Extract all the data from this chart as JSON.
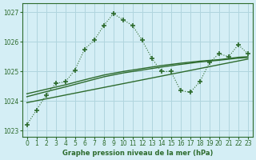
{
  "title": "Graphe pression niveau de la mer (hPa)",
  "background_color": "#d4eef5",
  "grid_color": "#b0d5de",
  "line_color": "#2d6b2d",
  "xlim": [
    -0.5,
    23.5
  ],
  "ylim": [
    1022.8,
    1027.3
  ],
  "yticks": [
    1023,
    1024,
    1025,
    1026,
    1027
  ],
  "xticks": [
    0,
    1,
    2,
    3,
    4,
    5,
    6,
    7,
    8,
    9,
    10,
    11,
    12,
    13,
    14,
    15,
    16,
    17,
    18,
    19,
    20,
    21,
    22,
    23
  ],
  "series_dotted": {
    "x": [
      0,
      1,
      2,
      3,
      4,
      5,
      6,
      7,
      8,
      9,
      10,
      11,
      12,
      13,
      14,
      15,
      16,
      17,
      18,
      19,
      20,
      21,
      22,
      23
    ],
    "y": [
      1023.2,
      1023.7,
      1024.2,
      1024.6,
      1024.65,
      1025.05,
      1025.75,
      1026.05,
      1026.55,
      1026.95,
      1026.75,
      1026.55,
      1026.05,
      1025.45,
      1025.0,
      1025.0,
      1024.35,
      1024.3,
      1024.65,
      1025.3,
      1025.6,
      1025.5,
      1025.9,
      1025.6
    ]
  },
  "series_smooth_a": {
    "x": [
      0,
      2,
      4,
      6,
      8,
      10,
      12,
      14,
      16,
      18,
      20,
      22,
      23
    ],
    "y": [
      1024.25,
      1024.4,
      1024.55,
      1024.72,
      1024.88,
      1025.0,
      1025.1,
      1025.2,
      1025.28,
      1025.35,
      1025.4,
      1025.48,
      1025.5
    ]
  },
  "series_smooth_b": {
    "x": [
      0,
      2,
      4,
      6,
      8,
      10,
      12,
      14,
      16,
      18,
      20,
      22,
      23
    ],
    "y": [
      1024.15,
      1024.32,
      1024.48,
      1024.65,
      1024.82,
      1024.95,
      1025.05,
      1025.15,
      1025.24,
      1025.32,
      1025.38,
      1025.45,
      1025.47
    ]
  },
  "series_smooth_c": {
    "x": [
      0,
      23
    ],
    "y": [
      1023.95,
      1025.42
    ]
  }
}
